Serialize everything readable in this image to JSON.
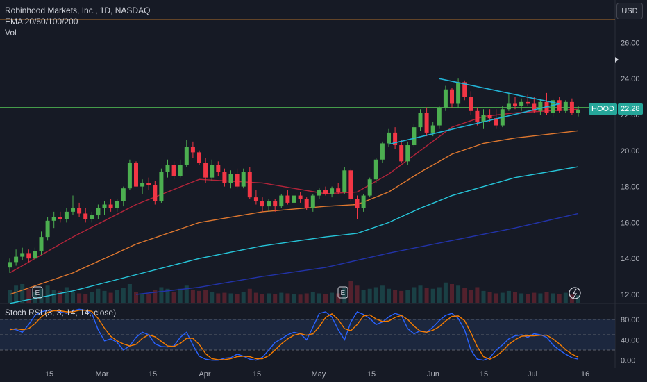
{
  "header": {
    "title": "Robinhood Markets, Inc., 1D, NASDAQ",
    "indicator": "EMA 20/50/100/200",
    "volume_label": "Vol"
  },
  "currency_button": "USD",
  "price_tag": {
    "symbol": "HOOD",
    "price": "22.28",
    "color": "#26a69a"
  },
  "rsi": {
    "label": "Stoch RSI (3, 3, 14, 14, close)"
  },
  "colors": {
    "background": "#161a25",
    "rsi_background": "#1e2a45",
    "up": "#26a69a",
    "up_candle": "#4caf50",
    "down": "#f23645",
    "ema20": "#b2243a",
    "ema50": "#e0782f",
    "ema100": "#26c6da",
    "ema200": "#2233aa",
    "trendline": "#22b3d6",
    "hline_orange": "#e08a2c",
    "hline_green": "#4caf50",
    "k_line": "#2962ff",
    "d_line": "#f57c00"
  },
  "chart_data": [
    {
      "type": "candlestick",
      "title": "Robinhood Markets, Inc., 1D, NASDAQ",
      "y_ticks": [
        "12.00",
        "14.00",
        "16.00",
        "18.00",
        "20.00",
        "22.00",
        "24.00",
        "26.00"
      ],
      "ylim": [
        12,
        28
      ],
      "x_ticks": [
        "15",
        "Mar",
        "15",
        "Apr",
        "15",
        "May",
        "15",
        "Jun",
        "15",
        "Jul",
        "16"
      ],
      "horizontal_lines": [
        27.3,
        22.4
      ],
      "trendlines": [
        {
          "from": [
            60,
            20.35
          ],
          "to": [
            87,
            22.6
          ]
        },
        {
          "from": [
            68,
            24.0
          ],
          "to": [
            87,
            22.6
          ]
        }
      ],
      "candles": [
        [
          13.5,
          14.0,
          13.2,
          13.8
        ],
        [
          13.8,
          14.5,
          13.6,
          14.1
        ],
        [
          14.1,
          14.6,
          13.9,
          14.3
        ],
        [
          14.3,
          14.5,
          13.8,
          14.0
        ],
        [
          14.0,
          14.6,
          13.9,
          14.4
        ],
        [
          14.4,
          15.5,
          14.2,
          15.2
        ],
        [
          15.2,
          16.3,
          15.0,
          16.1
        ],
        [
          16.1,
          16.6,
          15.7,
          16.3
        ],
        [
          16.3,
          16.6,
          16.0,
          16.2
        ],
        [
          16.2,
          16.8,
          16.0,
          16.6
        ],
        [
          16.6,
          17.5,
          16.4,
          16.8
        ],
        [
          16.8,
          17.1,
          16.3,
          16.5
        ],
        [
          16.5,
          16.8,
          16.0,
          16.2
        ],
        [
          16.2,
          16.6,
          16.0,
          16.4
        ],
        [
          16.4,
          17.0,
          16.2,
          16.8
        ],
        [
          16.8,
          17.2,
          16.4,
          17.0
        ],
        [
          17.0,
          17.3,
          16.6,
          16.8
        ],
        [
          16.8,
          17.3,
          16.6,
          17.2
        ],
        [
          17.2,
          18.0,
          16.9,
          17.9
        ],
        [
          17.9,
          19.5,
          17.8,
          19.3
        ],
        [
          19.3,
          19.4,
          18.0,
          18.0
        ],
        [
          18.0,
          18.4,
          17.6,
          18.2
        ],
        [
          18.2,
          18.5,
          17.8,
          18.1
        ],
        [
          18.1,
          18.3,
          17.0,
          17.2
        ],
        [
          17.2,
          19.0,
          17.1,
          18.8
        ],
        [
          18.8,
          19.5,
          18.5,
          19.2
        ],
        [
          19.2,
          19.4,
          18.4,
          18.6
        ],
        [
          18.6,
          19.5,
          18.5,
          19.2
        ],
        [
          19.2,
          20.6,
          19.1,
          20.2
        ],
        [
          20.2,
          20.5,
          19.6,
          19.9
        ],
        [
          19.9,
          20.0,
          19.2,
          19.3
        ],
        [
          19.3,
          19.6,
          18.2,
          18.5
        ],
        [
          18.5,
          19.5,
          18.3,
          19.2
        ],
        [
          19.2,
          19.4,
          18.6,
          18.8
        ],
        [
          18.8,
          19.0,
          18.0,
          18.2
        ],
        [
          18.2,
          18.9,
          17.9,
          18.7
        ],
        [
          18.7,
          19.0,
          17.9,
          18.0
        ],
        [
          18.0,
          19.0,
          17.9,
          18.8
        ],
        [
          18.8,
          19.1,
          17.3,
          17.4
        ],
        [
          17.4,
          17.8,
          17.0,
          17.2
        ],
        [
          17.2,
          17.4,
          16.6,
          16.9
        ],
        [
          16.9,
          17.3,
          16.6,
          17.2
        ],
        [
          17.2,
          17.3,
          16.6,
          16.9
        ],
        [
          16.9,
          17.6,
          16.8,
          17.5
        ],
        [
          17.5,
          17.8,
          17.0,
          17.1
        ],
        [
          17.1,
          17.6,
          16.9,
          17.5
        ],
        [
          17.5,
          17.7,
          17.1,
          17.3
        ],
        [
          17.3,
          17.4,
          16.7,
          16.8
        ],
        [
          16.8,
          17.6,
          16.6,
          17.5
        ],
        [
          17.5,
          17.9,
          17.3,
          17.8
        ],
        [
          17.8,
          18.0,
          17.5,
          17.6
        ],
        [
          17.6,
          18.0,
          17.4,
          17.9
        ],
        [
          17.9,
          18.2,
          17.6,
          17.7
        ],
        [
          17.7,
          19.1,
          17.6,
          18.9
        ],
        [
          18.9,
          19.0,
          17.2,
          17.3
        ],
        [
          17.3,
          17.5,
          16.2,
          16.8
        ],
        [
          16.8,
          17.6,
          16.6,
          17.5
        ],
        [
          17.5,
          18.5,
          17.4,
          18.4
        ],
        [
          18.4,
          19.6,
          18.2,
          19.5
        ],
        [
          19.5,
          20.5,
          19.3,
          20.4
        ],
        [
          20.4,
          21.2,
          20.2,
          21.0
        ],
        [
          21.0,
          21.3,
          20.1,
          20.3
        ],
        [
          20.3,
          20.6,
          19.3,
          19.4
        ],
        [
          19.4,
          20.5,
          19.2,
          20.3
        ],
        [
          20.3,
          21.5,
          20.2,
          21.3
        ],
        [
          21.3,
          22.3,
          21.1,
          22.1
        ],
        [
          22.1,
          22.4,
          20.8,
          21.0
        ],
        [
          21.0,
          21.6,
          20.8,
          21.4
        ],
        [
          21.4,
          22.5,
          21.2,
          22.4
        ],
        [
          22.4,
          23.6,
          22.2,
          23.4
        ],
        [
          23.4,
          23.5,
          22.4,
          22.6
        ],
        [
          22.6,
          24.0,
          22.4,
          23.8
        ],
        [
          23.8,
          23.9,
          22.8,
          23.0
        ],
        [
          23.0,
          23.3,
          22.0,
          22.2
        ],
        [
          22.2,
          22.4,
          21.4,
          21.6
        ],
        [
          21.6,
          22.3,
          21.2,
          22.0
        ],
        [
          22.0,
          22.3,
          21.6,
          21.8
        ],
        [
          21.8,
          22.3,
          21.2,
          21.4
        ],
        [
          21.4,
          22.5,
          21.3,
          22.3
        ],
        [
          22.3,
          23.2,
          22.2,
          22.6
        ],
        [
          22.6,
          23.0,
          22.3,
          22.5
        ],
        [
          22.5,
          22.9,
          22.2,
          22.7
        ],
        [
          22.7,
          23.1,
          22.5,
          22.6
        ],
        [
          22.6,
          23.0,
          22.1,
          22.2
        ],
        [
          22.2,
          22.8,
          22.0,
          22.7
        ],
        [
          22.7,
          23.2,
          22.0,
          22.1
        ],
        [
          22.1,
          22.9,
          21.9,
          22.8
        ],
        [
          22.8,
          23.0,
          22.1,
          22.2
        ],
        [
          22.2,
          22.8,
          22.1,
          22.7
        ],
        [
          22.7,
          22.9,
          22.0,
          22.1
        ],
        [
          22.1,
          22.5,
          21.9,
          22.28
        ]
      ],
      "ema_series": [
        {
          "period": 20,
          "points": [
            [
              0,
              13.2
            ],
            [
              10,
              15.2
            ],
            [
              20,
              17.0
            ],
            [
              30,
              18.4
            ],
            [
              40,
              18.2
            ],
            [
              50,
              17.6
            ],
            [
              55,
              17.7
            ],
            [
              60,
              18.7
            ],
            [
              65,
              20.0
            ],
            [
              70,
              21.3
            ],
            [
              75,
              21.9
            ],
            [
              80,
              22.1
            ],
            [
              90,
              22.3
            ]
          ]
        },
        {
          "period": 50,
          "points": [
            [
              0,
              12.0
            ],
            [
              10,
              13.2
            ],
            [
              20,
              14.8
            ],
            [
              30,
              16.0
            ],
            [
              40,
              16.6
            ],
            [
              50,
              16.9
            ],
            [
              55,
              17.0
            ],
            [
              60,
              17.7
            ],
            [
              65,
              18.8
            ],
            [
              70,
              19.8
            ],
            [
              75,
              20.4
            ],
            [
              80,
              20.7
            ],
            [
              90,
              21.1
            ]
          ]
        },
        {
          "period": 100,
          "points": [
            [
              0,
              11.5
            ],
            [
              10,
              12.2
            ],
            [
              20,
              13.1
            ],
            [
              30,
              14.0
            ],
            [
              40,
              14.7
            ],
            [
              50,
              15.2
            ],
            [
              55,
              15.4
            ],
            [
              60,
              16.0
            ],
            [
              65,
              16.8
            ],
            [
              70,
              17.5
            ],
            [
              75,
              18.0
            ],
            [
              80,
              18.5
            ],
            [
              90,
              19.1
            ]
          ]
        },
        {
          "period": 200,
          "points": [
            [
              20,
              12.0
            ],
            [
              30,
              12.4
            ],
            [
              40,
              13.0
            ],
            [
              50,
              13.5
            ],
            [
              60,
              14.3
            ],
            [
              70,
              15.0
            ],
            [
              80,
              15.7
            ],
            [
              90,
              16.5
            ]
          ]
        }
      ],
      "volume": [
        40,
        55,
        60,
        45,
        35,
        45,
        55,
        40,
        38,
        50,
        35,
        30,
        28,
        35,
        45,
        38,
        32,
        40,
        48,
        60,
        35,
        30,
        28,
        40,
        50,
        45,
        35,
        45,
        55,
        42,
        38,
        40,
        35,
        30,
        32,
        30,
        28,
        35,
        45,
        32,
        28,
        30,
        28,
        32,
        30,
        28,
        26,
        30,
        35,
        30,
        28,
        32,
        30,
        48,
        70,
        55,
        40,
        45,
        50,
        55,
        45,
        40,
        38,
        42,
        50,
        55,
        48,
        45,
        50,
        65,
        60,
        55,
        48,
        42,
        50,
        38,
        35,
        30,
        32,
        38,
        35,
        30,
        28,
        32,
        30,
        35,
        30,
        28,
        32,
        26,
        24
      ]
    },
    {
      "type": "line",
      "title": "Stoch RSI (3, 3, 14, 14, close)",
      "y_ticks": [
        "0.00",
        "40.00",
        "80.00"
      ],
      "ylim": [
        -10,
        110
      ],
      "bands": [
        80,
        50,
        20
      ],
      "series": [
        {
          "name": "K",
          "values": [
            62,
            60,
            55,
            70,
            88,
            95,
            98,
            98,
            95,
            92,
            97,
            100,
            98,
            92,
            60,
            38,
            42,
            35,
            20,
            28,
            45,
            55,
            50,
            32,
            27,
            26,
            28,
            45,
            55,
            30,
            8,
            2,
            0,
            0,
            4,
            5,
            12,
            8,
            2,
            0,
            6,
            20,
            35,
            42,
            50,
            55,
            52,
            40,
            65,
            92,
            95,
            85,
            60,
            40,
            75,
            95,
            90,
            82,
            70,
            75,
            85,
            92,
            88,
            62,
            52,
            58,
            55,
            65,
            78,
            88,
            92,
            82,
            60,
            20,
            2,
            0,
            5,
            20,
            30,
            42,
            48,
            50,
            45,
            52,
            50,
            45,
            30,
            20,
            12,
            5,
            2
          ]
        },
        {
          "name": "D",
          "values": [
            60,
            62,
            60,
            62,
            72,
            85,
            94,
            97,
            97,
            95,
            95,
            98,
            98,
            96,
            82,
            63,
            47,
            38,
            32,
            28,
            31,
            43,
            50,
            46,
            37,
            28,
            27,
            33,
            43,
            43,
            31,
            13,
            3,
            1,
            1,
            3,
            7,
            8,
            7,
            3,
            3,
            9,
            20,
            32,
            42,
            49,
            52,
            49,
            52,
            66,
            84,
            91,
            80,
            62,
            58,
            70,
            87,
            89,
            81,
            76,
            77,
            84,
            88,
            80,
            67,
            57,
            55,
            59,
            66,
            77,
            86,
            87,
            78,
            54,
            27,
            7,
            2,
            8,
            18,
            31,
            40,
            47,
            48,
            48,
            49,
            49,
            42,
            32,
            21,
            12,
            6
          ]
        }
      ]
    }
  ]
}
